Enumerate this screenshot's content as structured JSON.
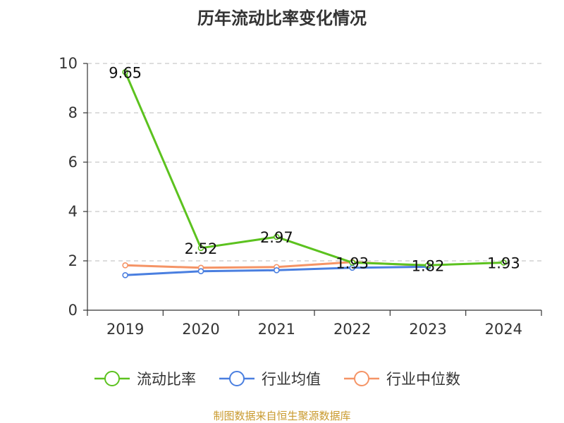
{
  "title": "历年流动比率变化情况",
  "source_text": "制图数据来自恒生聚源数据库",
  "colors": {
    "series_1": "#5cc21f",
    "series_2": "#4a7fe0",
    "series_3": "#f59466",
    "source": "#c99a2e",
    "axis": "#333333",
    "grid": "#bbbbbb"
  },
  "chart_data": {
    "type": "line",
    "title": "历年流动比率变化情况",
    "categories": [
      "2019",
      "2020",
      "2021",
      "2022",
      "2023",
      "2024"
    ],
    "ylim": [
      0,
      10
    ],
    "yticks": [
      0,
      2,
      4,
      6,
      8,
      10
    ],
    "grid": "horizontal-dashed",
    "legend_position": "bottom",
    "series": [
      {
        "name": "流动比率",
        "values": [
          9.65,
          2.52,
          2.97,
          1.93,
          1.82,
          1.93
        ],
        "labels": [
          "9.65",
          "2.52",
          "2.97",
          "1.93",
          "1.82",
          "1.93"
        ],
        "color_key": "series_1"
      },
      {
        "name": "行业均值",
        "values": [
          1.42,
          1.58,
          1.62,
          1.72,
          1.76,
          null
        ],
        "color_key": "series_2"
      },
      {
        "name": "行业中位数",
        "values": [
          1.82,
          1.72,
          1.75,
          1.95,
          1.8,
          null
        ],
        "color_key": "series_3"
      }
    ]
  }
}
